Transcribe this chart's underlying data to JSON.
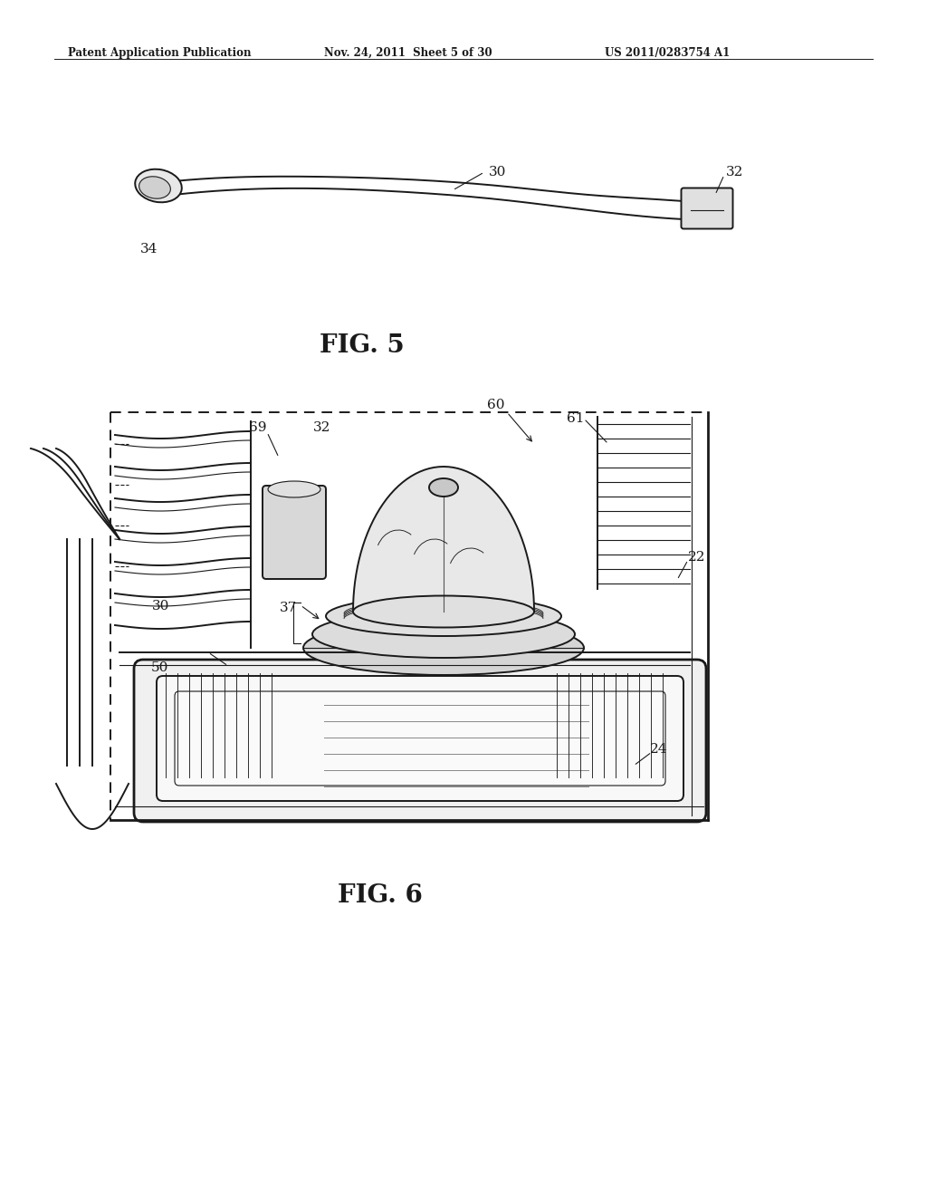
{
  "bg_color": "#ffffff",
  "line_color": "#1a1a1a",
  "header_left": "Patent Application Publication",
  "header_center": "Nov. 24, 2011  Sheet 5 of 30",
  "header_right": "US 2011/0283754 A1",
  "fig5_label": "FIG. 5",
  "fig6_label": "FIG. 6",
  "lw": 1.4,
  "lw_thin": 0.8,
  "lw_thick": 2.0
}
